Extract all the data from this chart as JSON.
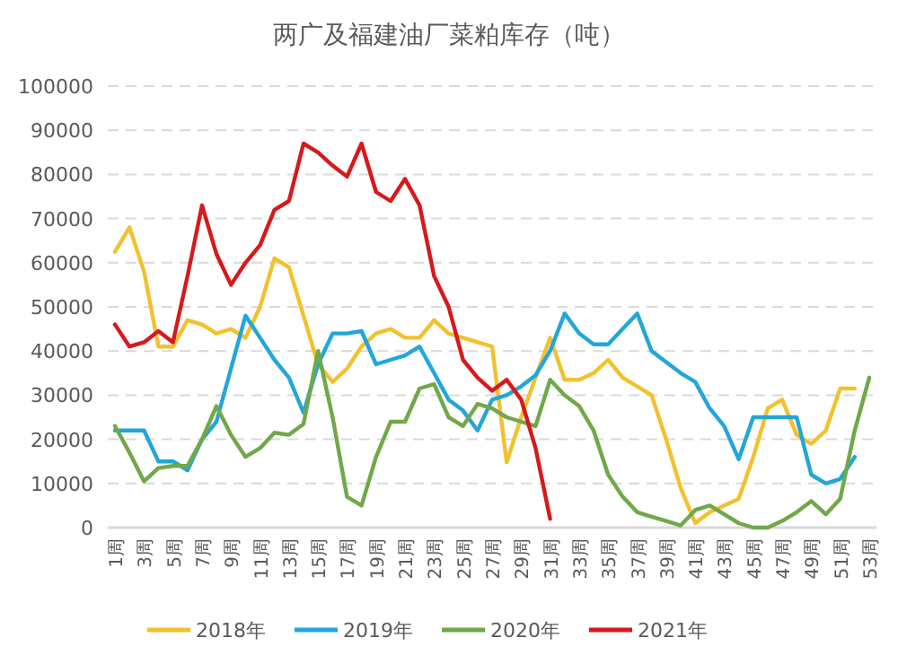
{
  "chart_data": {
    "type": "line",
    "title": "两广及福建油厂菜粕库存（吨）",
    "categories": [
      "1周",
      null,
      "3周",
      null,
      "5周",
      null,
      "7周",
      null,
      "9周",
      null,
      "11周",
      null,
      "13周",
      null,
      "15周",
      null,
      "17周",
      null,
      "19周",
      null,
      "21周",
      null,
      "23周",
      null,
      "25周",
      null,
      "27周",
      null,
      "29周",
      null,
      "31周",
      null,
      "33周",
      null,
      "35周",
      null,
      "37周",
      null,
      "39周",
      null,
      "41周",
      null,
      "43周",
      null,
      "45周",
      null,
      "47周",
      null,
      "49周",
      null,
      "51周",
      null,
      "53周"
    ],
    "ylim": [
      0,
      100000
    ],
    "yticks": [
      0,
      10000,
      20000,
      30000,
      40000,
      50000,
      60000,
      70000,
      80000,
      90000,
      100000
    ],
    "grid": "y",
    "legend": "bottom",
    "marker": "none",
    "line_style": "solid",
    "series": [
      {
        "name": "2018年",
        "color": "#f2c12e",
        "values": [
          62500,
          68000,
          58000,
          41000,
          41000,
          47000,
          46000,
          44000,
          45000,
          43000,
          50000,
          61000,
          59000,
          48000,
          37000,
          33000,
          36000,
          41000,
          44000,
          45000,
          43000,
          43000,
          47000,
          44000,
          43000,
          42000,
          41000,
          14800,
          25000,
          34000,
          43000,
          33500,
          33500,
          35000,
          38000,
          34000,
          32000,
          30000,
          20000,
          9000,
          1000,
          3500,
          5000,
          6500,
          16000,
          27000,
          29000,
          21000,
          19000,
          22000,
          31500,
          31500,
          null
        ]
      },
      {
        "name": "2019年",
        "color": "#23a6d9",
        "values": [
          22000,
          22000,
          22000,
          15000,
          15000,
          13000,
          20000,
          24000,
          36000,
          48000,
          43000,
          38000,
          34000,
          26000,
          37000,
          44000,
          44000,
          44500,
          37000,
          38000,
          39000,
          41000,
          35000,
          29000,
          26500,
          22000,
          29000,
          30000,
          32000,
          34500,
          40000,
          48500,
          44000,
          41500,
          41500,
          45000,
          48500,
          40000,
          37500,
          35000,
          33000,
          27000,
          23000,
          15500,
          25000,
          25000,
          25000,
          25000,
          12000,
          10000,
          11000,
          16000,
          null
        ]
      },
      {
        "name": "2020年",
        "color": "#70a84a",
        "values": [
          23000,
          17000,
          10500,
          13500,
          14000,
          14000,
          20000,
          27500,
          21000,
          16000,
          18000,
          21500,
          21000,
          23500,
          40000,
          25000,
          7000,
          5000,
          16000,
          24000,
          24000,
          31500,
          32500,
          25000,
          23000,
          28000,
          27000,
          25000,
          24000,
          23000,
          33500,
          30000,
          27500,
          22000,
          12000,
          7000,
          3500,
          2500,
          1500,
          500,
          4000,
          5000,
          3000,
          1000,
          0,
          0,
          1500,
          3500,
          6000,
          3000,
          6500,
          22000,
          34000
        ]
      },
      {
        "name": "2021年",
        "color": "#d7191c",
        "values": [
          46000,
          41000,
          42000,
          44500,
          42000,
          57000,
          73000,
          62000,
          55000,
          60000,
          64000,
          72000,
          74000,
          87000,
          85000,
          82000,
          79500,
          87000,
          76000,
          74000,
          79000,
          73000,
          57000,
          50000,
          38000,
          34000,
          31000,
          33500,
          29000,
          18000,
          2000,
          null,
          null,
          null,
          null,
          null,
          null,
          null,
          null,
          null,
          null,
          null,
          null,
          null,
          null,
          null,
          null,
          null,
          null,
          null,
          null,
          null,
          null
        ]
      }
    ]
  }
}
